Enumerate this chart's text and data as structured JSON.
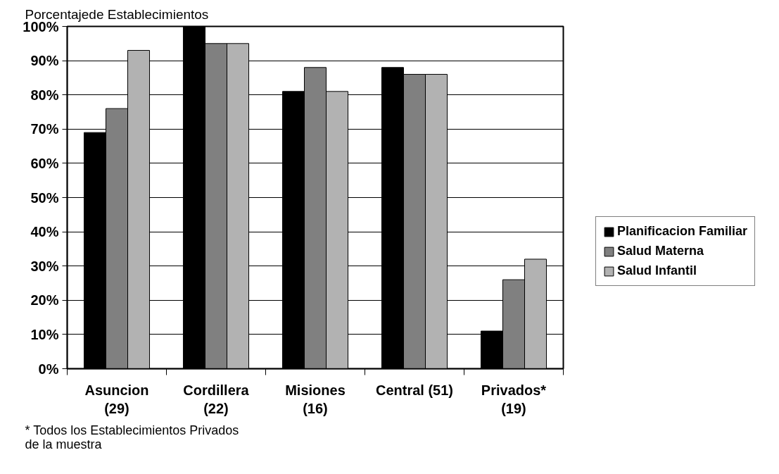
{
  "chart_data": {
    "type": "bar",
    "ylabel": "Porcentajede Establecimientos",
    "categories": [
      "Asuncion\n(29)",
      "Cordillera\n(22)",
      "Misiones\n(16)",
      "Central (51)",
      "Privados*\n(19)"
    ],
    "series": [
      {
        "name": "Planificacion Familiar",
        "color": "#000000",
        "values": [
          69,
          100,
          81,
          88,
          11
        ]
      },
      {
        "name": "Salud Materna",
        "color": "#808080",
        "values": [
          76,
          95,
          88,
          86,
          26
        ]
      },
      {
        "name": "Salud Infantil",
        "color": "#b2b2b2",
        "values": [
          93,
          95,
          81,
          86,
          32
        ]
      }
    ],
    "ylim": [
      0,
      100
    ],
    "yticks": [
      {
        "value": 0,
        "label": "0%"
      },
      {
        "value": 10,
        "label": "10%"
      },
      {
        "value": 20,
        "label": "20%"
      },
      {
        "value": 30,
        "label": "30%"
      },
      {
        "value": 40,
        "label": "40%"
      },
      {
        "value": 50,
        "label": "50%"
      },
      {
        "value": 60,
        "label": "60%"
      },
      {
        "value": 70,
        "label": "70%"
      },
      {
        "value": 80,
        "label": "80%"
      },
      {
        "value": 90,
        "label": "90%"
      },
      {
        "value": 100,
        "label": "100%"
      }
    ],
    "grid": "y",
    "legend": "right",
    "annotations": [
      "* Todos los Establecimientos Privados\nde la muestra"
    ]
  }
}
